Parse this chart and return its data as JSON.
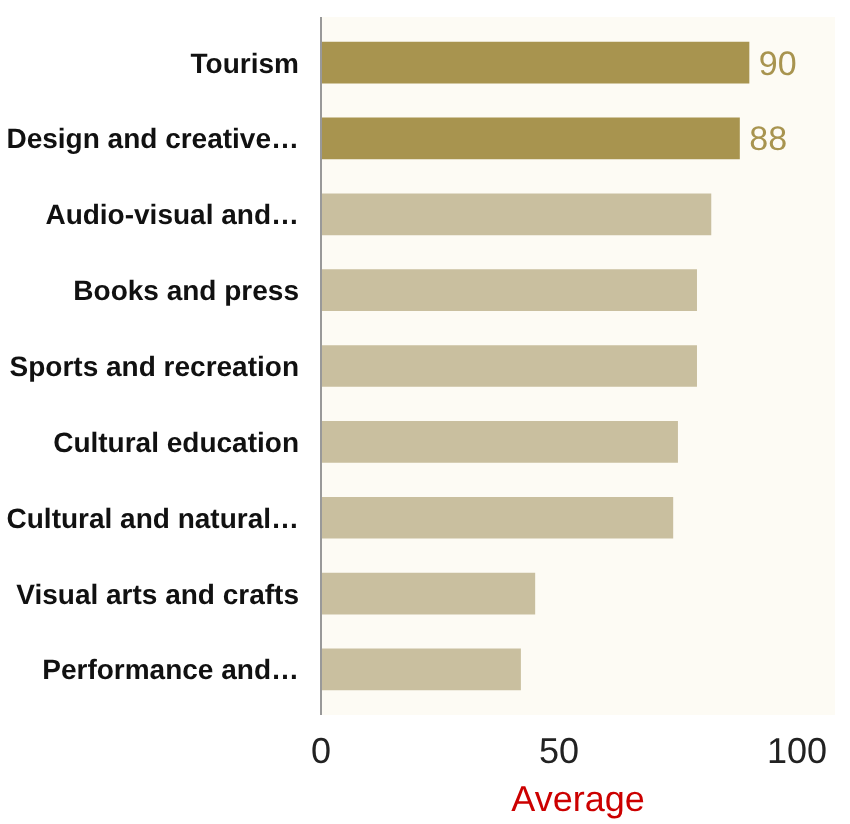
{
  "chart_data": {
    "type": "bar",
    "orientation": "horizontal",
    "xlabel": "Average",
    "categories": [
      "Tourism",
      "Design and creative…",
      "Audio-visual and…",
      "Books and press",
      "Sports and recreation",
      "Cultural education",
      "Cultural and natural…",
      "Visual arts and crafts",
      "Performance and…"
    ],
    "values": [
      90,
      88,
      82,
      79,
      79,
      75,
      74,
      45,
      42
    ],
    "colors": [
      "#a8944f",
      "#a8944f",
      "#c9bf9f",
      "#c9bf9f",
      "#c9bf9f",
      "#c9bf9f",
      "#c9bf9f",
      "#c9bf9f",
      "#c9bf9f"
    ],
    "value_labels": [
      "90",
      "88",
      null,
      null,
      null,
      null,
      null,
      null,
      null
    ],
    "xlim": [
      0,
      108
    ],
    "xticks": [
      0,
      50,
      100
    ]
  }
}
